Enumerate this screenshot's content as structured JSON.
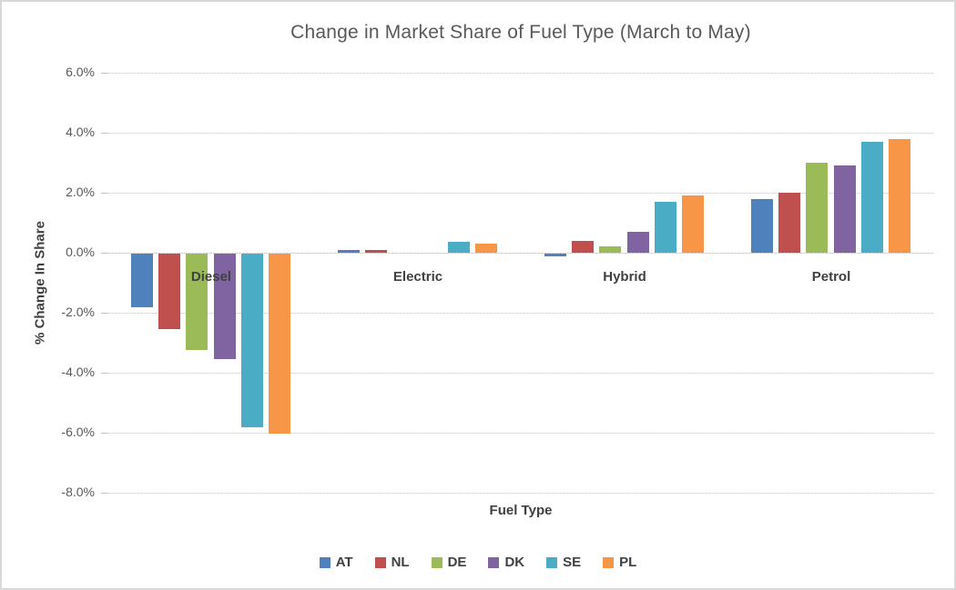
{
  "chart_data": {
    "type": "bar",
    "title": "Change in Market Share of Fuel Type (March to May)",
    "xlabel": "Fuel Type",
    "ylabel": "% Change In Share",
    "categories": [
      "Diesel",
      "Electric",
      "Hybrid",
      "Petrol"
    ],
    "series": [
      {
        "name": "AT",
        "color": "#4F81BD",
        "values": [
          -1.8,
          0.1,
          -0.1,
          1.8
        ]
      },
      {
        "name": "NL",
        "color": "#C0504D",
        "values": [
          -2.5,
          0.1,
          0.4,
          2.0
        ]
      },
      {
        "name": "DE",
        "color": "#9BBB59",
        "values": [
          -3.2,
          0.0,
          0.2,
          3.0
        ]
      },
      {
        "name": "DK",
        "color": "#8064A2",
        "values": [
          -3.5,
          0.0,
          0.7,
          2.9
        ]
      },
      {
        "name": "SE",
        "color": "#4BACC6",
        "values": [
          -5.8,
          0.35,
          1.7,
          3.7
        ]
      },
      {
        "name": "PL",
        "color": "#F79646",
        "values": [
          -6.0,
          0.3,
          1.9,
          3.8
        ]
      }
    ],
    "ylim": [
      -8,
      6
    ],
    "ytick_step": 2,
    "ytick_labels": [
      "6.0%",
      "4.0%",
      "2.0%",
      "0.0%",
      "-2.0%",
      "-4.0%",
      "-6.0%",
      "-8.0%"
    ],
    "grid": true,
    "legend_position": "bottom",
    "text_colors": {
      "title": "#595959",
      "ticks": "#595959",
      "labels": "#404040"
    }
  }
}
